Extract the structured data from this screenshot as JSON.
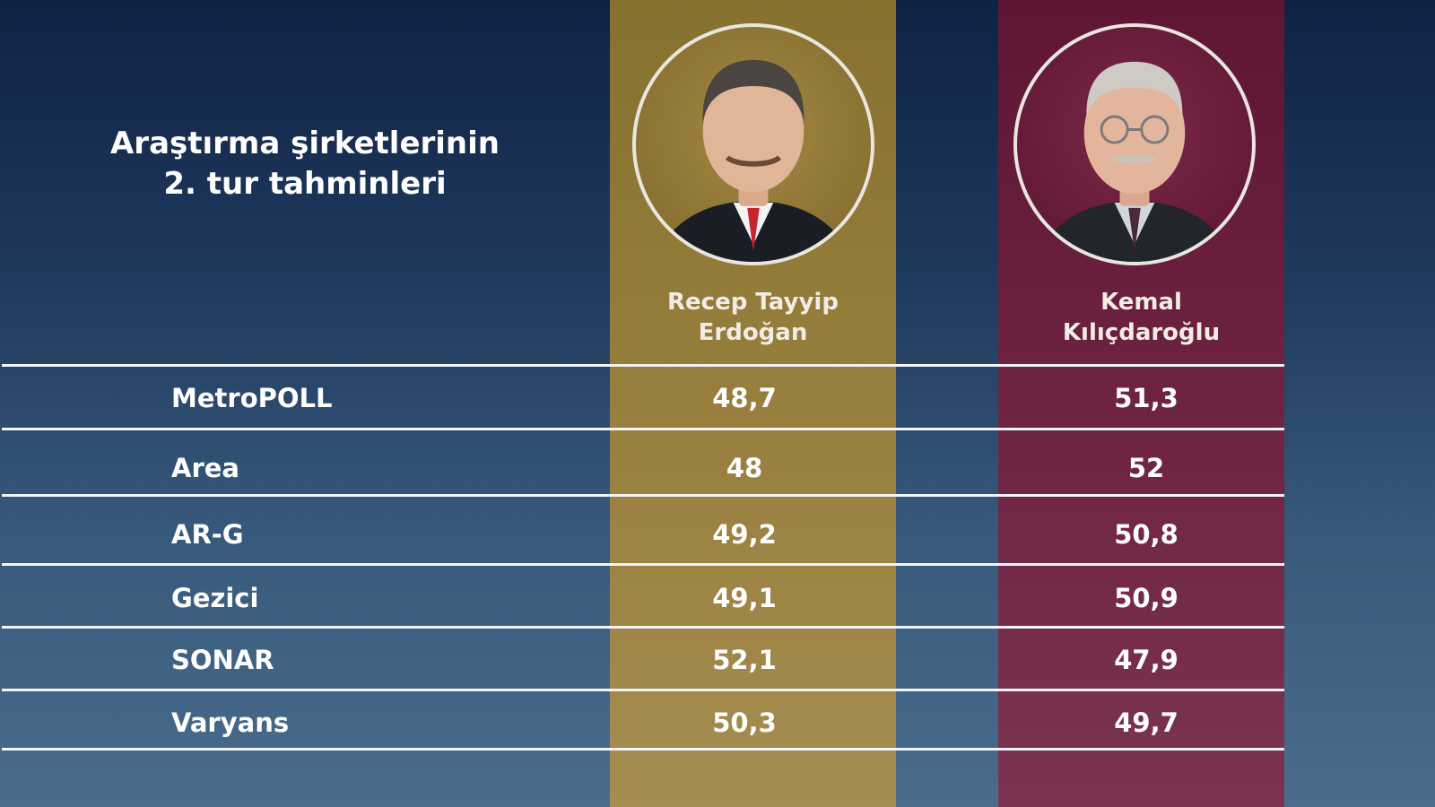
{
  "chart_data": {
    "type": "table",
    "title_lines": [
      "Araştırma şirketlerinin",
      "2. tur tahminleri"
    ],
    "columns": [
      {
        "name_lines": [
          "Recep Tayyip",
          "Erdoğan"
        ],
        "color": "#8f7735"
      },
      {
        "name_lines": [
          "Kemal",
          "Kılıçdaroğlu"
        ],
        "color": "#6a1f3d"
      }
    ],
    "rows": [
      {
        "firm": "MetroPOLL",
        "values": [
          "48,7",
          "51,3"
        ]
      },
      {
        "firm": "Area",
        "values": [
          "48",
          "52"
        ]
      },
      {
        "firm": "AR-G",
        "values": [
          "49,2",
          "50,8"
        ]
      },
      {
        "firm": "Gezici",
        "values": [
          "49,1",
          "50,9"
        ]
      },
      {
        "firm": "SONAR",
        "values": [
          "52,1",
          "47,9"
        ]
      },
      {
        "firm": "Varyans",
        "values": [
          "50,3",
          "49,7"
        ]
      }
    ]
  }
}
